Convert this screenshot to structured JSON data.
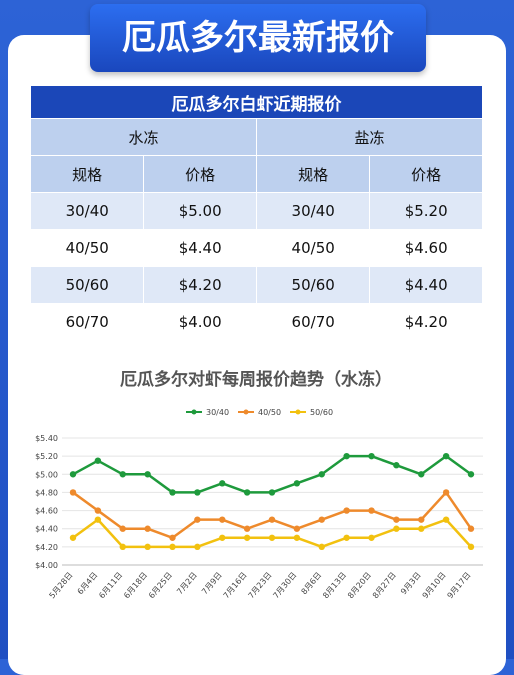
{
  "header": {
    "title": "厄瓜多尔最新报价"
  },
  "table": {
    "title": "厄瓜多尔白虾近期报价",
    "groups": [
      "水冻",
      "盐冻"
    ],
    "columns": [
      "规格",
      "价格",
      "规格",
      "价格"
    ],
    "rows": [
      [
        "30/40",
        "$5.00",
        "30/40",
        "$5.20"
      ],
      [
        "40/50",
        "$4.40",
        "40/50",
        "$4.60"
      ],
      [
        "50/60",
        "$4.20",
        "50/60",
        "$4.40"
      ],
      [
        "60/70",
        "$4.00",
        "60/70",
        "$4.20"
      ]
    ]
  },
  "chart_data": {
    "type": "line",
    "title": "厄瓜多尔对虾每周报价趋势（水冻）",
    "categories": [
      "5月28日",
      "6月4日",
      "6月11日",
      "6月18日",
      "6月25日",
      "7月2日",
      "7月9日",
      "7月16日",
      "7月23日",
      "7月30日",
      "8月6日",
      "8月13日",
      "8月20日",
      "8月27日",
      "9月3日",
      "9月10日",
      "9月17日"
    ],
    "series": [
      {
        "name": "30/40",
        "color": "#1e9a3c",
        "values": [
          5.0,
          5.15,
          5.0,
          5.0,
          4.8,
          4.8,
          4.9,
          4.8,
          4.8,
          4.9,
          5.0,
          5.2,
          5.2,
          5.1,
          5.0,
          5.2,
          5.0
        ]
      },
      {
        "name": "40/50",
        "color": "#ee8a2c",
        "values": [
          4.8,
          4.6,
          4.4,
          4.4,
          4.3,
          4.5,
          4.5,
          4.4,
          4.5,
          4.4,
          4.5,
          4.6,
          4.6,
          4.5,
          4.5,
          4.8,
          4.4
        ]
      },
      {
        "name": "50/60",
        "color": "#f2c10f",
        "values": [
          4.3,
          4.5,
          4.2,
          4.2,
          4.2,
          4.2,
          4.3,
          4.3,
          4.3,
          4.3,
          4.2,
          4.3,
          4.3,
          4.4,
          4.4,
          4.5,
          4.2
        ]
      }
    ],
    "ylim": [
      4.0,
      5.4
    ],
    "yticks": [
      {
        "value": 4.0,
        "label": "$4.00"
      },
      {
        "value": 4.2,
        "label": "$4.20"
      },
      {
        "value": 4.4,
        "label": "$4.40"
      },
      {
        "value": 4.6,
        "label": "$4.60"
      },
      {
        "value": 4.8,
        "label": "$4.80"
      },
      {
        "value": 5.0,
        "label": "$5.00"
      },
      {
        "value": 5.2,
        "label": "$5.20"
      },
      {
        "value": 5.4,
        "label": "$5.40"
      }
    ],
    "grid": true,
    "legend": "top"
  }
}
